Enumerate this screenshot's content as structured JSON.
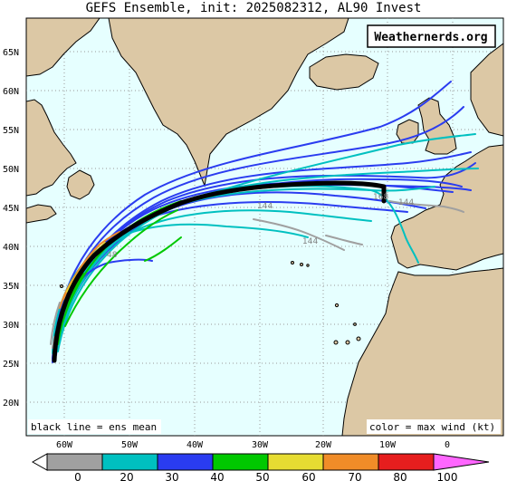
{
  "title": "GEFS Ensemble, init: 2025082312, AL90 Invest",
  "brand": "Weathernerds.org",
  "note_left": "black line = ens mean",
  "note_right": "color = max wind (kt)",
  "lat_labels": [
    "65N",
    "60N",
    "55N",
    "50N",
    "45N",
    "40N",
    "35N",
    "30N",
    "25N",
    "20N"
  ],
  "lon_labels": [
    "60W",
    "50W",
    "40W",
    "30W",
    "20W",
    "10W",
    "0"
  ],
  "hour_labels": [
    "144",
    "144",
    "168",
    "144",
    "48"
  ],
  "colorbar": {
    "labels": [
      "0",
      "20",
      "30",
      "40",
      "50",
      "60",
      "70",
      "80",
      "100"
    ],
    "colors": [
      "#a0a0a0",
      "#00c0c0",
      "#2a3cf0",
      "#00c800",
      "#e6dc32",
      "#f08c28",
      "#e61e1e",
      "#ff66ff"
    ]
  },
  "colors": {
    "ocean": "#e6ffff",
    "land": "#dcc8a5",
    "mean": "#000000"
  }
}
